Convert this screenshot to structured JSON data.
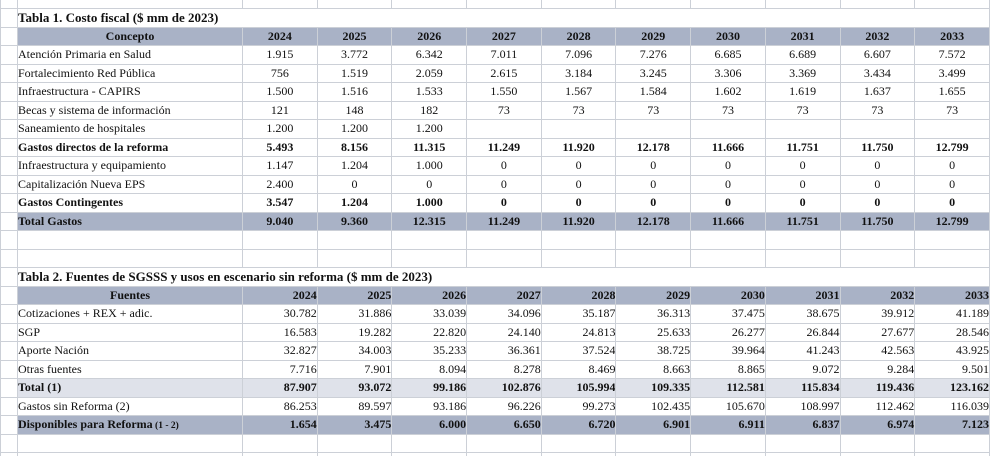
{
  "sheet": {
    "colors": {
      "header_fill": "#a9b2c6",
      "subtotal_fill": "#dfe2ea",
      "gridline": "#ccd0d7",
      "text": "#111111"
    }
  },
  "tables": [
    {
      "title": "Tabla 1. Costo fiscal ($ mm de 2023)",
      "concept_header": "Concepto",
      "align": "center",
      "years": [
        "2024",
        "2025",
        "2026",
        "2027",
        "2028",
        "2029",
        "2030",
        "2031",
        "2032",
        "2033"
      ],
      "rows": [
        {
          "label": "Atención Primaria en Salud",
          "style": "normal",
          "values": [
            "1.915",
            "3.772",
            "6.342",
            "7.011",
            "7.096",
            "7.276",
            "6.685",
            "6.689",
            "6.607",
            "7.572"
          ]
        },
        {
          "label": "Fortalecimiento Red Pública",
          "style": "normal",
          "values": [
            "756",
            "1.519",
            "2.059",
            "2.615",
            "3.184",
            "3.245",
            "3.306",
            "3.369",
            "3.434",
            "3.499"
          ]
        },
        {
          "label": "Infraestructura - CAPIRS",
          "style": "normal",
          "values": [
            "1.500",
            "1.516",
            "1.533",
            "1.550",
            "1.567",
            "1.584",
            "1.602",
            "1.619",
            "1.637",
            "1.655"
          ]
        },
        {
          "label": "Becas y sistema de información",
          "style": "normal",
          "values": [
            "121",
            "148",
            "182",
            "73",
            "73",
            "73",
            "73",
            "73",
            "73",
            "73"
          ]
        },
        {
          "label": "Saneamiento de hospitales",
          "style": "normal",
          "values": [
            "1.200",
            "1.200",
            "1.200",
            "",
            "",
            "",
            "",
            "",
            "",
            ""
          ]
        },
        {
          "label": "Gastos directos de la reforma",
          "style": "bold",
          "values": [
            "5.493",
            "8.156",
            "11.315",
            "11.249",
            "11.920",
            "12.178",
            "11.666",
            "11.751",
            "11.750",
            "12.799"
          ]
        },
        {
          "label": "Infraestructura y equipamiento",
          "style": "normal",
          "values": [
            "1.147",
            "1.204",
            "1.000",
            "0",
            "0",
            "0",
            "0",
            "0",
            "0",
            "0"
          ]
        },
        {
          "label": "Capitalización Nueva EPS",
          "style": "normal",
          "values": [
            "2.400",
            "0",
            "0",
            "0",
            "0",
            "0",
            "0",
            "0",
            "0",
            "0"
          ]
        },
        {
          "label": "Gastos Contingentes",
          "style": "bold",
          "values": [
            "3.547",
            "1.204",
            "1.000",
            "0",
            "0",
            "0",
            "0",
            "0",
            "0",
            "0"
          ]
        },
        {
          "label": "Total Gastos",
          "style": "total",
          "values": [
            "9.040",
            "9.360",
            "12.315",
            "11.249",
            "11.920",
            "12.178",
            "11.666",
            "11.751",
            "11.750",
            "12.799"
          ]
        }
      ]
    },
    {
      "title": "Tabla 2. Fuentes de SGSSS y usos en escenario sin reforma ($ mm de 2023)",
      "concept_header": "Fuentes",
      "align": "right",
      "years": [
        "2024",
        "2025",
        "2026",
        "2027",
        "2028",
        "2029",
        "2030",
        "2031",
        "2032",
        "2033"
      ],
      "rows": [
        {
          "label": "Cotizaciones + REX + adic.",
          "style": "normal",
          "values": [
            "30.782",
            "31.886",
            "33.039",
            "34.096",
            "35.187",
            "36.313",
            "37.475",
            "38.675",
            "39.912",
            "41.189"
          ]
        },
        {
          "label": "SGP",
          "style": "normal",
          "values": [
            "16.583",
            "19.282",
            "22.820",
            "24.140",
            "24.813",
            "25.633",
            "26.277",
            "26.844",
            "27.677",
            "28.546"
          ]
        },
        {
          "label": "Aporte Nación",
          "style": "normal",
          "values": [
            "32.827",
            "34.003",
            "35.233",
            "36.361",
            "37.524",
            "38.725",
            "39.964",
            "41.243",
            "42.563",
            "43.925"
          ]
        },
        {
          "label": "Otras fuentes",
          "style": "normal",
          "values": [
            "7.716",
            "7.901",
            "8.094",
            "8.278",
            "8.469",
            "8.663",
            "8.865",
            "9.072",
            "9.284",
            "9.501"
          ]
        },
        {
          "label": "Total (1)",
          "style": "subtotal",
          "values": [
            "87.907",
            "93.072",
            "99.186",
            "102.876",
            "105.994",
            "109.335",
            "112.581",
            "115.834",
            "119.436",
            "123.162"
          ]
        },
        {
          "label": "Gastos sin Reforma (2)",
          "style": "normal",
          "values": [
            "86.253",
            "89.597",
            "93.186",
            "96.226",
            "99.273",
            "102.435",
            "105.670",
            "108.997",
            "112.462",
            "116.039"
          ]
        },
        {
          "label": "Disponibles para Reforma",
          "label_suffix": "(1 - 2)",
          "style": "total",
          "values": [
            "1.654",
            "3.475",
            "6.000",
            "6.650",
            "6.720",
            "6.901",
            "6.911",
            "6.837",
            "6.974",
            "7.123"
          ]
        }
      ]
    }
  ]
}
